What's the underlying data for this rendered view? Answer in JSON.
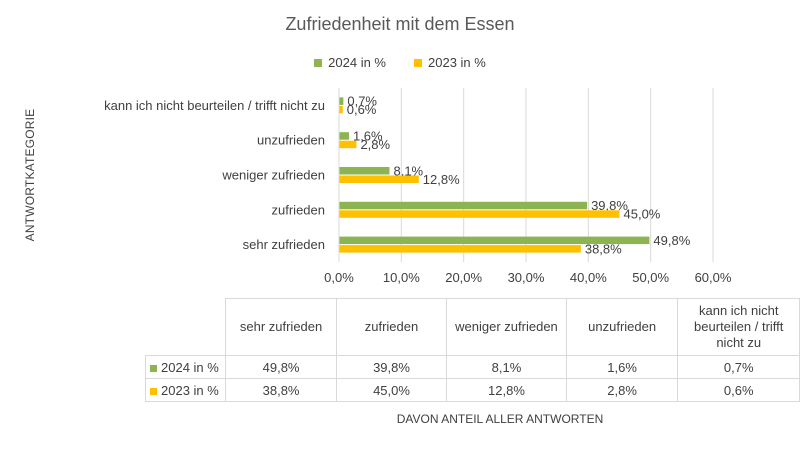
{
  "chart_data": {
    "type": "bar",
    "orientation": "horizontal",
    "title": "Zufriedenheit mit dem Essen",
    "ylabel": "ANTWORTKATEGORIE",
    "xlabel": "DAVON ANTEIL ALLER ANTWORTEN",
    "xlim": [
      0,
      60
    ],
    "xticks": [
      "0,0%",
      "10,0%",
      "20,0%",
      "30,0%",
      "40,0%",
      "50,0%",
      "60,0%"
    ],
    "grid": true,
    "legend_position": "top",
    "categories": [
      "sehr zufrieden",
      "zufrieden",
      "weniger zufrieden",
      "unzufrieden",
      "kann ich nicht beurteilen / trifft nicht zu"
    ],
    "table_headers": [
      "sehr zufrieden",
      "zufrieden",
      "weniger zufrieden",
      "unzufrieden",
      "kann ich nicht beurteilen / trifft nicht zu"
    ],
    "series": [
      {
        "name": "2024 in %",
        "color": "#8cb452",
        "values": [
          49.8,
          39.8,
          8.1,
          1.6,
          0.7
        ],
        "labels": [
          "49,8%",
          "39,8%",
          "8,1%",
          "1,6%",
          "0,7%"
        ]
      },
      {
        "name": "2023 in %",
        "color": "#ffc000",
        "values": [
          38.8,
          45.0,
          12.8,
          2.8,
          0.6
        ],
        "labels": [
          "38,8%",
          "45,0%",
          "12,8%",
          "2,8%",
          "0,6%"
        ]
      }
    ]
  }
}
